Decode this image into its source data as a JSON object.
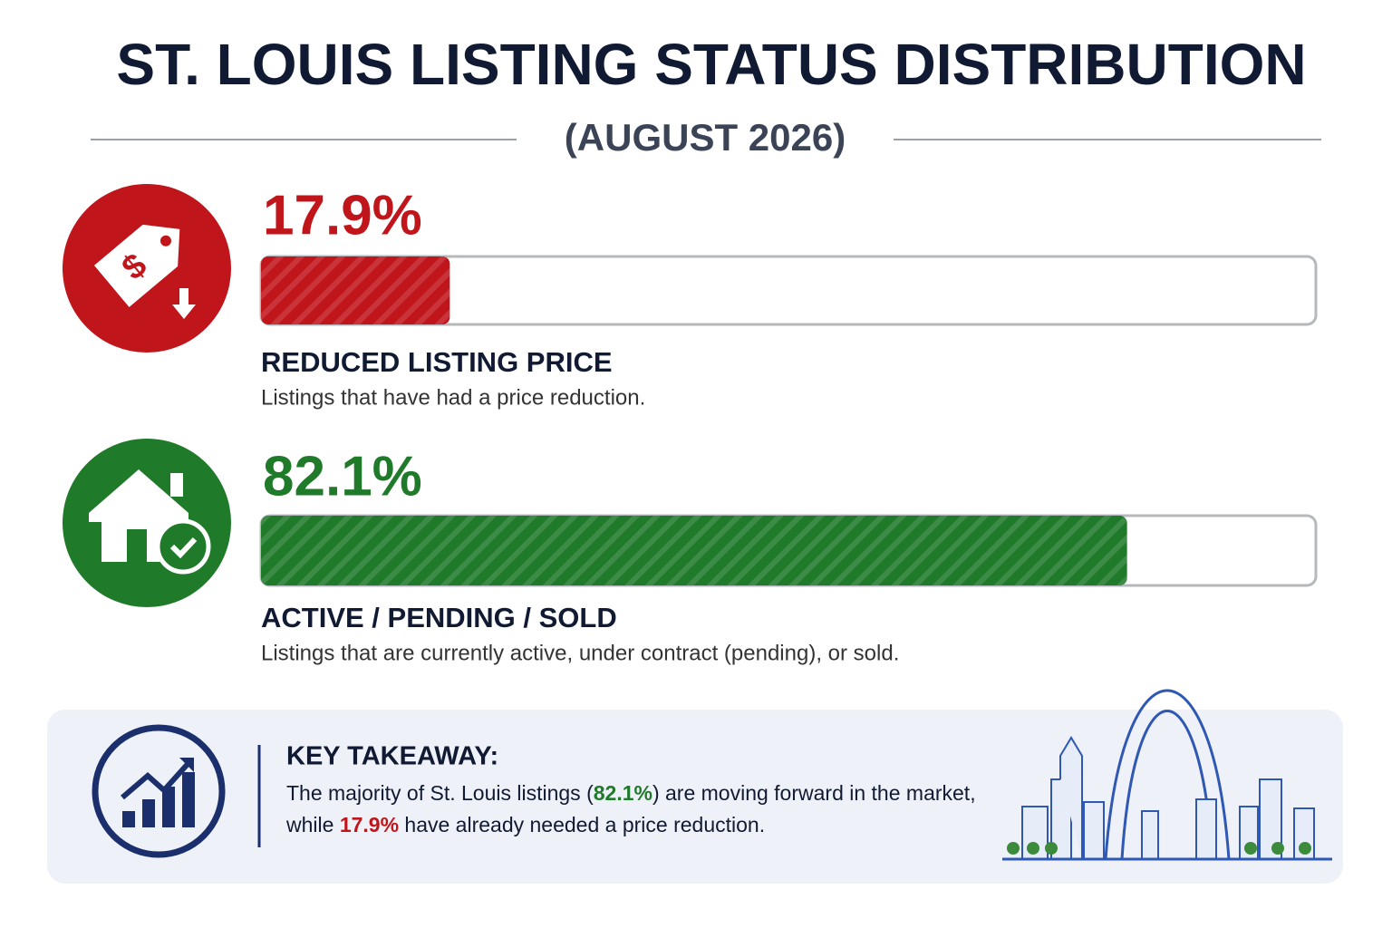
{
  "chart_data": {
    "type": "progress",
    "title": "ST. LOUIS LISTING STATUS DISTRIBUTION",
    "subtitle": "(AUGUST 2026)",
    "categories": [
      "REDUCED LISTING PRICE",
      "ACTIVE / PENDING / SOLD"
    ],
    "descriptions": [
      "Listings that have had a price reduction.",
      "Listings that are currently active, under contract (pending), or sold."
    ],
    "values": [
      17.9,
      82.1
    ],
    "value_labels": [
      "17.9%",
      "82.1%"
    ],
    "colors": [
      "#c0161b",
      "#1f7a2a"
    ],
    "xlim": [
      0,
      100
    ]
  },
  "takeaway": {
    "heading": "KEY TAKEAWAY:",
    "lines": [
      [
        {
          "text": "The majority of St. Louis listings ("
        },
        {
          "text": "82.1%",
          "color": "#1f7a2a"
        },
        {
          "text": ") are moving forward in the market,"
        }
      ],
      [
        {
          "text": "while "
        },
        {
          "text": "17.9%",
          "color": "#c0161b"
        },
        {
          "text": " have already needed a price reduction."
        }
      ]
    ]
  }
}
